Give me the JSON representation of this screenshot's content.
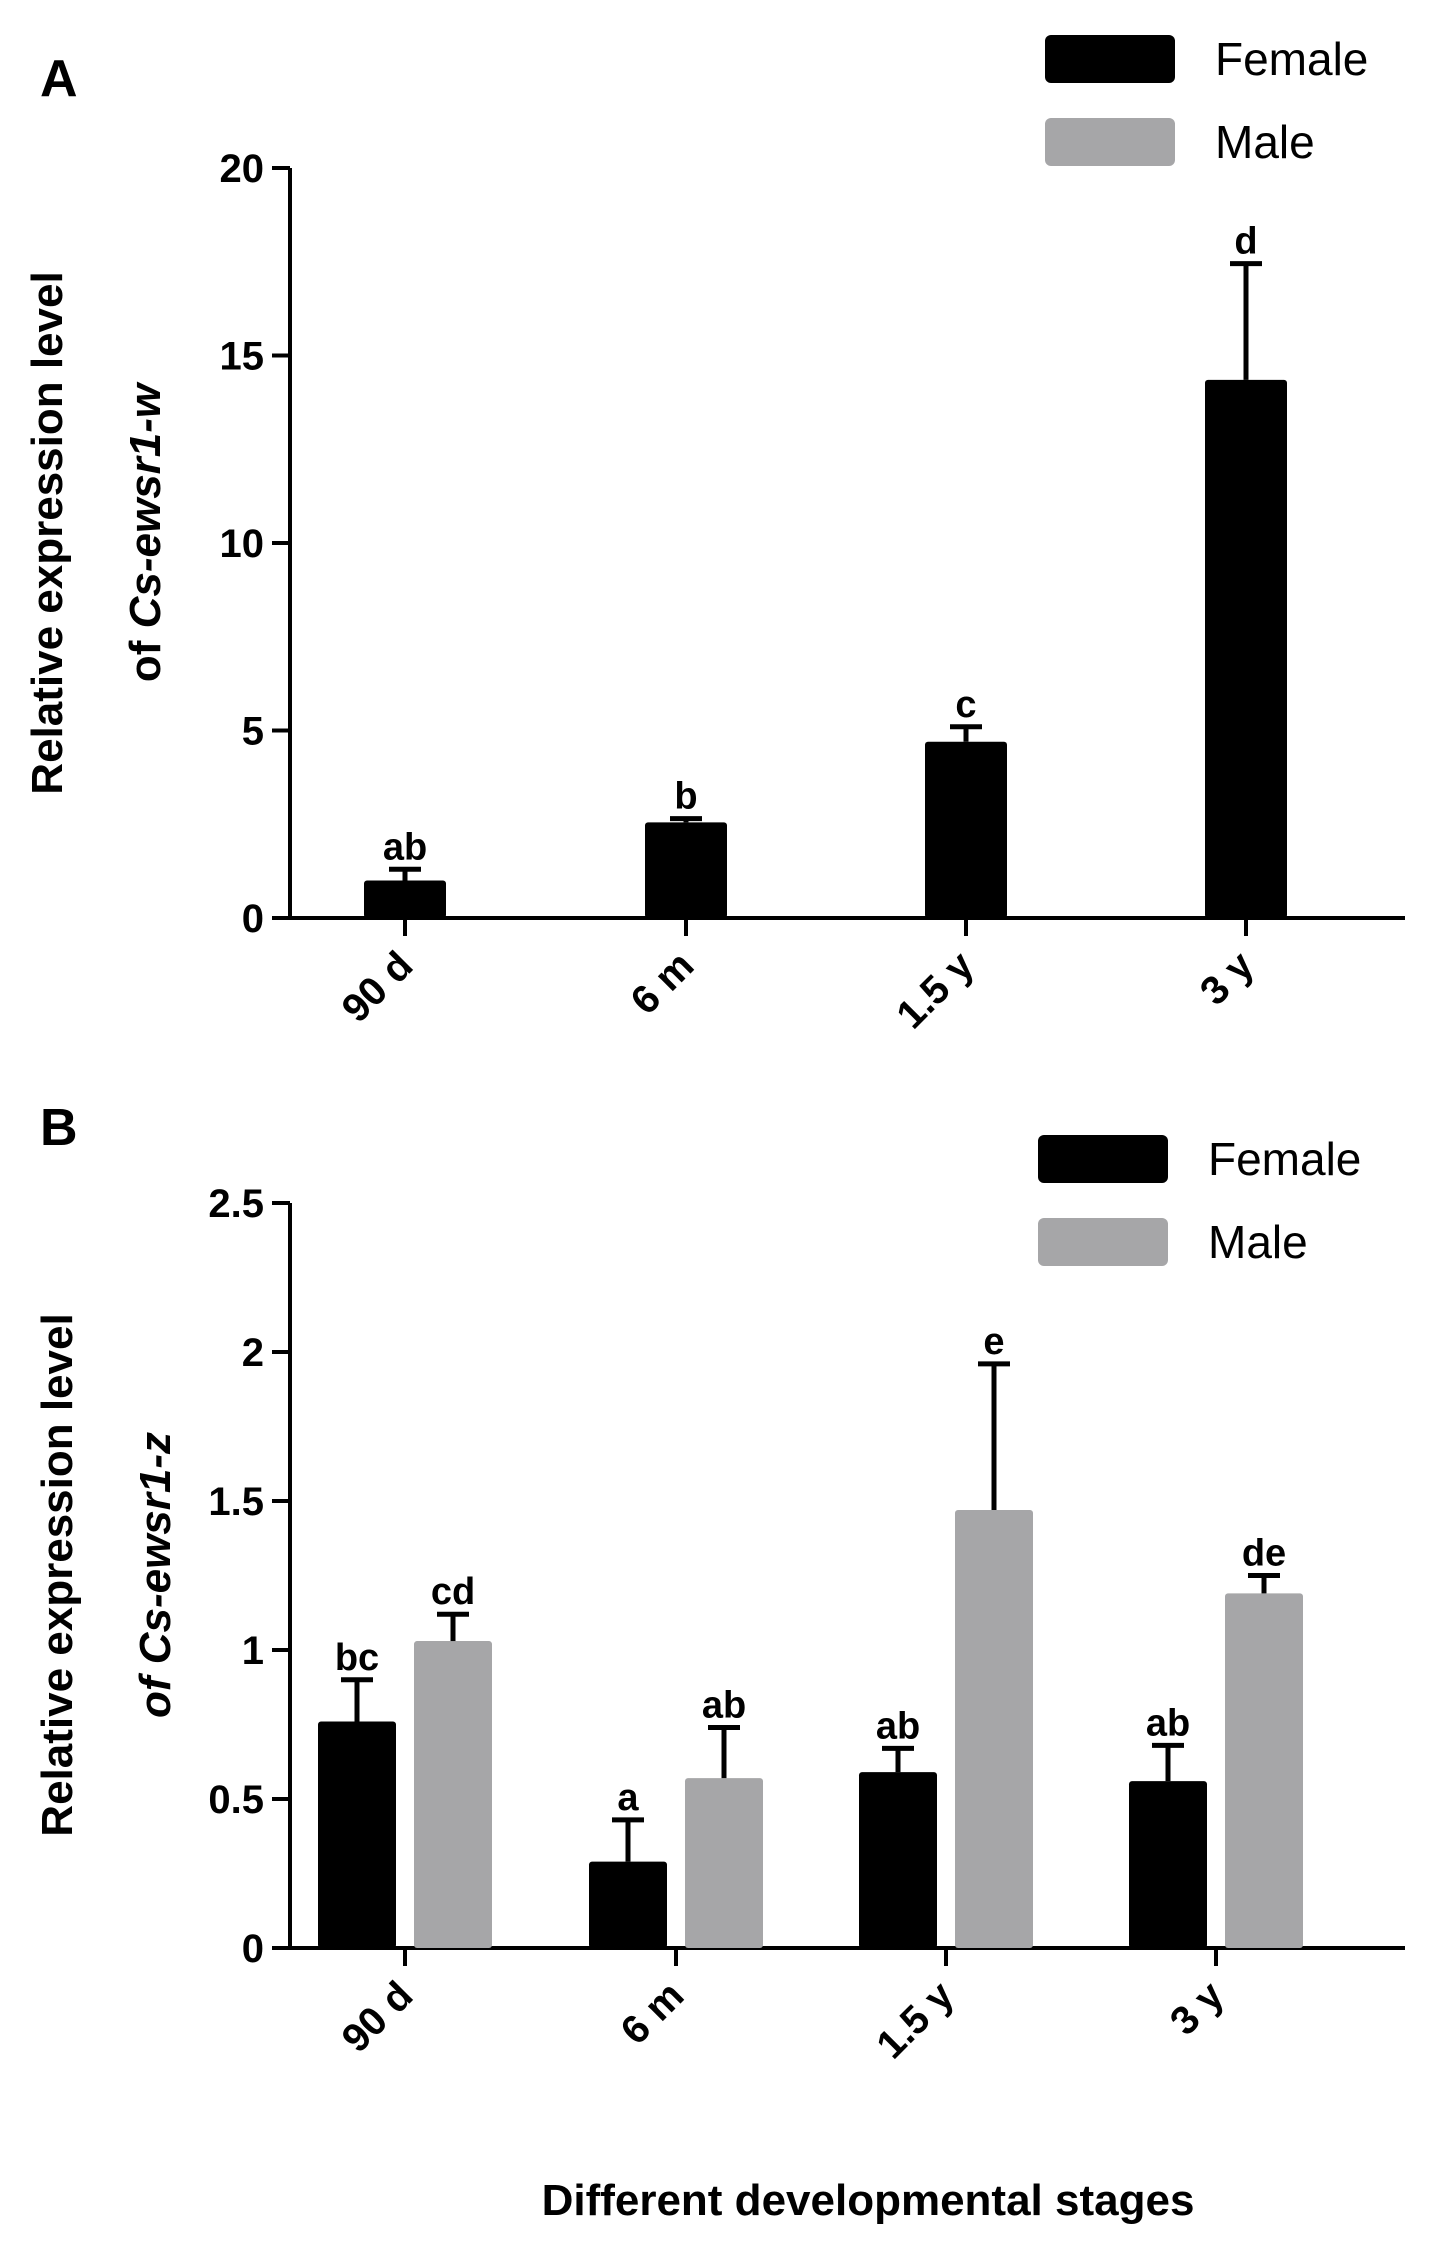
{
  "figure": {
    "xlabel": "Different developmental stages"
  },
  "colors": {
    "female": "#000000",
    "male": "#a6a6a8",
    "axis": "#000000"
  },
  "chart_data": [
    {
      "type": "bar",
      "panel": "A",
      "ylabel_line1": "Relative expression level",
      "ylabel_line2_prefix": "of ",
      "ylabel_gene": "Cs-ewsr1-w",
      "categories": [
        "90 d",
        "6 m",
        "1.5 y",
        "3 y"
      ],
      "ylim": [
        0,
        20
      ],
      "yticks": [
        0,
        5,
        10,
        15,
        20
      ],
      "ytick_labels": [
        "0",
        "5",
        "10",
        "15",
        "20"
      ],
      "legend": [
        "Female",
        "Male"
      ],
      "legend_position": "top-right",
      "series": [
        {
          "name": "Female",
          "values": [
            1.0,
            2.55,
            4.7,
            14.35
          ],
          "errors": [
            0.3,
            0.1,
            0.4,
            3.1
          ],
          "labels": [
            "ab",
            "b",
            "c",
            "d"
          ]
        },
        {
          "name": "Male",
          "values": [
            null,
            null,
            null,
            null
          ],
          "errors": [
            null,
            null,
            null,
            null
          ],
          "labels": [
            null,
            null,
            null,
            null
          ]
        }
      ]
    },
    {
      "type": "bar",
      "panel": "B",
      "ylabel_line1": "Relative expression level",
      "ylabel_line2_prefix": "of ",
      "ylabel_gene": "Cs-ewsr1-z",
      "categories": [
        "90 d",
        "6 m",
        "1.5 y",
        "3 y"
      ],
      "ylim": [
        0,
        2.5
      ],
      "yticks": [
        0,
        0.5,
        1,
        1.5,
        2,
        2.5
      ],
      "ytick_labels": [
        "0",
        "0.5",
        "1",
        "1.5",
        "2",
        "2.5"
      ],
      "legend": [
        "Female",
        "Male"
      ],
      "legend_position": "top-right",
      "series": [
        {
          "name": "Female",
          "values": [
            0.76,
            0.29,
            0.59,
            0.56
          ],
          "errors": [
            0.14,
            0.14,
            0.08,
            0.12
          ],
          "labels": [
            "bc",
            "a",
            "ab",
            "ab"
          ]
        },
        {
          "name": "Male",
          "values": [
            1.03,
            0.57,
            1.47,
            1.19
          ],
          "errors": [
            0.09,
            0.17,
            0.49,
            0.06
          ],
          "labels": [
            "cd",
            "ab",
            "e",
            "de"
          ]
        }
      ]
    }
  ]
}
